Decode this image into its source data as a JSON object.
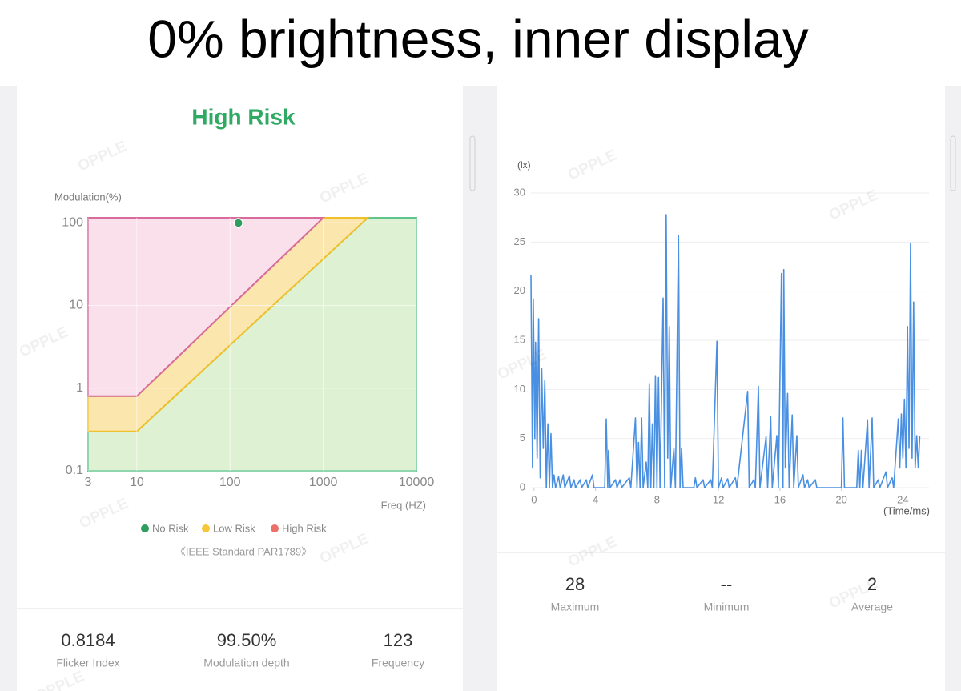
{
  "header": {
    "title": "0% brightness, inner display"
  },
  "watermark": "OPPLE",
  "chart_data": [
    {
      "type": "area",
      "title": "High Risk",
      "y_label": "Modulation(%)",
      "x_label": "Freq.(HZ)",
      "xscale": "log",
      "yscale": "log",
      "xlim": [
        3,
        10000
      ],
      "ylim": [
        0.1,
        115
      ],
      "xticks": [
        3,
        10,
        100,
        1000,
        10000
      ],
      "yticks": [
        0.1,
        1,
        10,
        100
      ],
      "grid": true,
      "series": [
        {
          "name": "No Risk",
          "color": "#2e9e5e",
          "fill": "#dff1d3",
          "stroke": "#5fc58c",
          "x": [
            3,
            10,
            3000,
            10000,
            10000,
            3
          ],
          "values": [
            0.3,
            0.3,
            115,
            115,
            0.1,
            0.1
          ]
        },
        {
          "name": "Low Risk",
          "color": "#f6c63b",
          "fill": "#fbe6ae",
          "stroke": "#f0c02c",
          "x": [
            3,
            10,
            1000,
            3000,
            10,
            3
          ],
          "values": [
            0.8,
            0.8,
            115,
            115,
            0.3,
            0.3
          ]
        },
        {
          "name": "High Risk",
          "color": "#ec6f6a",
          "fill": "#f9e0ea",
          "stroke": "#d76c9c",
          "x": [
            3,
            10,
            1000,
            3
          ],
          "values": [
            0.8,
            0.8,
            115,
            115
          ]
        }
      ],
      "marker": {
        "x": 123,
        "y": 99.5,
        "color": "#2e9e5e"
      },
      "footnote": "《IEEE Standard PAR1789》"
    },
    {
      "type": "line",
      "y_label": "(lx)",
      "x_label": "(Time/ms)",
      "xlim": [
        -0.2,
        25.7
      ],
      "ylim": [
        0,
        30
      ],
      "xticks": [
        0,
        4,
        8,
        12,
        16,
        20,
        24
      ],
      "yticks": [
        0,
        5,
        10,
        15,
        20,
        25,
        30
      ],
      "grid": true,
      "series": [
        {
          "color": "#4a90e2",
          "x": [
            -0.2,
            -0.1,
            -0.05,
            0.05,
            0.1,
            0.2,
            0.3,
            0.4,
            0.5,
            0.6,
            0.7,
            0.8,
            0.9,
            1.0,
            1.1,
            1.2,
            1.3,
            1.4,
            1.6,
            1.7,
            1.9,
            2.0,
            2.3,
            2.4,
            2.6,
            2.7,
            3.0,
            3.1,
            3.4,
            3.5,
            3.8,
            3.9,
            4.6,
            4.7,
            4.8,
            4.85,
            4.95,
            5.3,
            5.4,
            5.6,
            5.7,
            6.2,
            6.3,
            6.6,
            6.7,
            6.8,
            6.9,
            7.0,
            7.1,
            7.3,
            7.4,
            7.5,
            7.6,
            7.7,
            7.8,
            7.9,
            8.0,
            8.1,
            8.2,
            8.4,
            8.5,
            8.6,
            8.7,
            8.8,
            8.9,
            9.1,
            9.2,
            9.4,
            9.5,
            9.6,
            9.7,
            10.4,
            10.5,
            10.6,
            11.0,
            11.1,
            11.5,
            11.6,
            11.9,
            12.0,
            12.2,
            12.3,
            12.6,
            12.7,
            13.1,
            13.2,
            13.9,
            14.0,
            14.3,
            14.4,
            14.6,
            14.7,
            15.1,
            15.2,
            15.4,
            15.5,
            15.8,
            15.9,
            16.1,
            16.2,
            16.25,
            16.35,
            16.5,
            16.6,
            16.8,
            16.9,
            17.1,
            17.2,
            17.5,
            17.6,
            17.8,
            17.9,
            18.3,
            18.4,
            20.0,
            20.1,
            20.2,
            21.0,
            21.1,
            21.2,
            21.3,
            21.4,
            21.7,
            21.8,
            22.0,
            22.1,
            22.4,
            22.5,
            22.9,
            23.0,
            23.3,
            23.4,
            23.7,
            23.8,
            23.9,
            24.0,
            24.1,
            24.2,
            24.3,
            24.4,
            24.5,
            24.6,
            24.7,
            24.8,
            24.9,
            25.0,
            25.1
          ],
          "values": [
            21.6,
            2,
            19.2,
            5,
            14.8,
            3,
            17.2,
            1,
            12.1,
            4,
            10.9,
            0,
            6.5,
            0,
            5.5,
            0,
            1.3,
            0,
            1.1,
            0,
            1.3,
            0,
            1.2,
            0,
            0.8,
            0,
            0.8,
            0,
            0.8,
            0,
            1.3,
            0,
            0,
            7.0,
            0,
            3.8,
            0,
            0.8,
            0,
            0.8,
            0,
            1,
            0,
            7.1,
            0,
            4.6,
            0,
            7.1,
            0,
            2.6,
            0,
            10.6,
            0,
            6.5,
            0,
            11.4,
            0,
            11.2,
            0,
            19.3,
            0,
            27.8,
            3,
            16.4,
            0,
            4,
            0,
            25.7,
            0,
            4,
            0,
            0,
            1,
            0,
            0.8,
            0,
            0.8,
            0,
            14.9,
            0,
            1,
            0,
            0.9,
            0,
            1,
            0,
            9.8,
            0,
            0.8,
            0,
            10.3,
            0,
            5.2,
            0,
            7.2,
            0,
            5.3,
            0,
            21.8,
            0,
            22.2,
            2,
            9.6,
            0,
            7.4,
            0,
            5.3,
            0,
            1.3,
            0,
            0.8,
            0,
            0.8,
            0,
            0,
            7.1,
            0,
            0,
            3.8,
            0,
            3.8,
            0,
            6.9,
            0,
            7.1,
            0,
            0.8,
            0,
            1.6,
            0,
            1,
            0,
            7.0,
            2,
            7.5,
            3,
            9.0,
            2,
            16.4,
            4,
            24.9,
            3,
            18.9,
            2,
            5.3,
            2,
            5.3
          ]
        }
      ]
    }
  ],
  "stats": {
    "left": [
      {
        "value": "0.8184",
        "label": "Flicker Index"
      },
      {
        "value": "99.50%",
        "label": "Modulation depth"
      },
      {
        "value": "123",
        "label": "Frequency"
      }
    ],
    "right": [
      {
        "value": "28",
        "label": "Maximum"
      },
      {
        "value": "--",
        "label": "Minimum"
      },
      {
        "value": "2",
        "label": "Average"
      }
    ]
  }
}
